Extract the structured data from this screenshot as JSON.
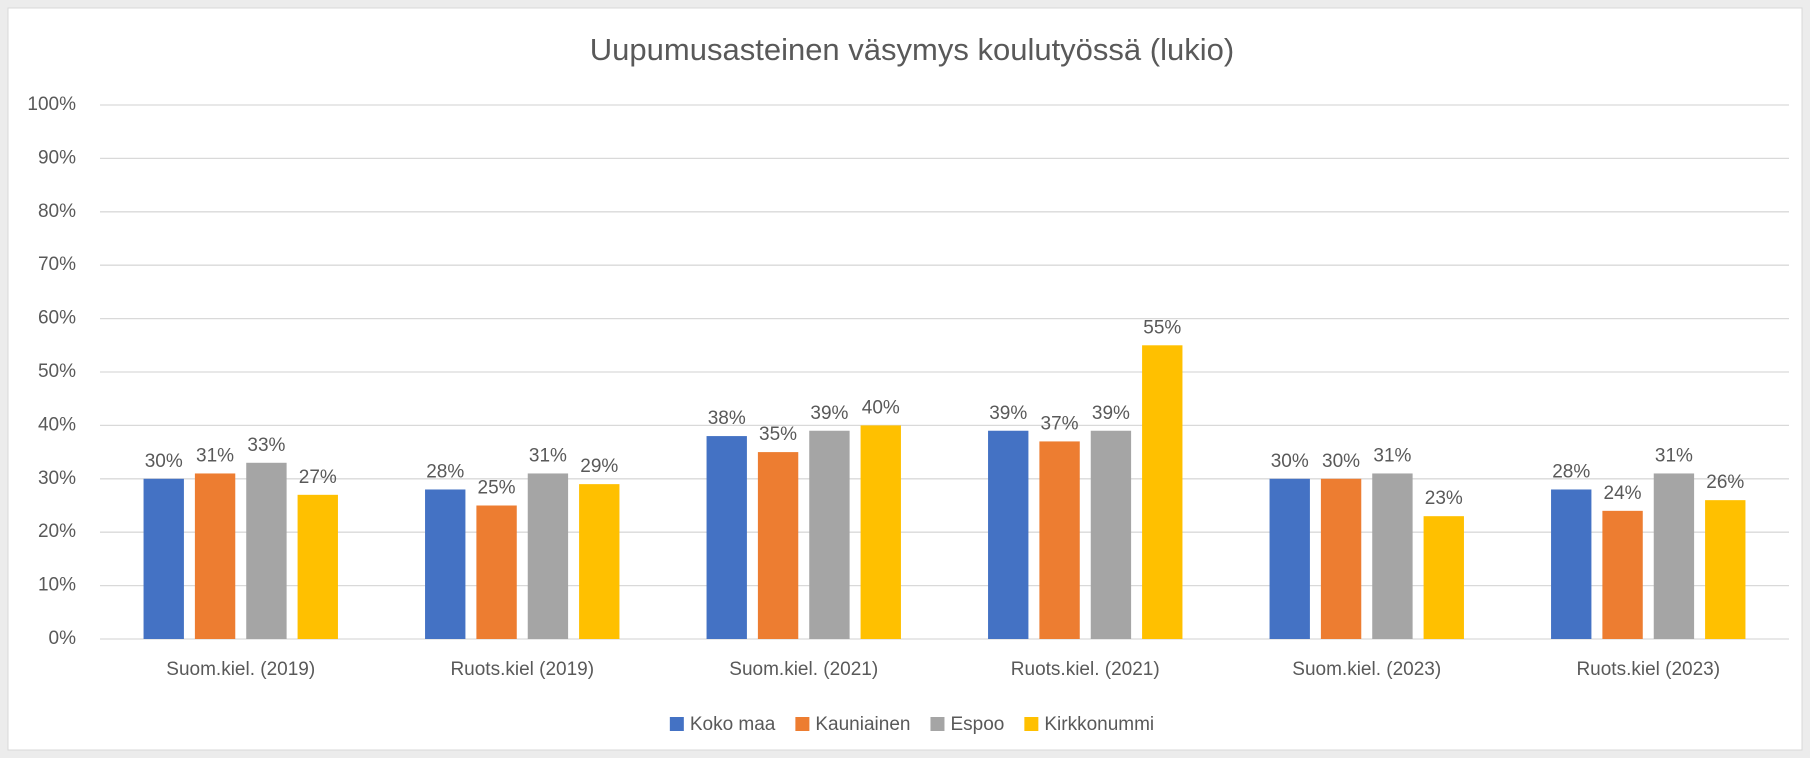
{
  "chart_data": {
    "type": "bar",
    "title": "Uupumusasteinen väsymys koulutyössä (lukio)",
    "categories": [
      "Suom.kiel. (2019)",
      "Ruots.kiel (2019)",
      "Suom.kiel. (2021)",
      "Ruots.kiel. (2021)",
      "Suom.kiel. (2023)",
      "Ruots.kiel (2023)"
    ],
    "series": [
      {
        "name": "Koko maa",
        "color": "#4472c4",
        "values": [
          30,
          28,
          38,
          39,
          30,
          28
        ],
        "value_labels": [
          "30%",
          "28%",
          "38%",
          "39%",
          "30%",
          "28%"
        ]
      },
      {
        "name": "Kauniainen",
        "color": "#ed7d31",
        "values": [
          31,
          25,
          35,
          37,
          30,
          24
        ],
        "value_labels": [
          "31%",
          "25%",
          "35%",
          "37%",
          "30%",
          "24%"
        ]
      },
      {
        "name": "Espoo",
        "color": "#a5a5a5",
        "values": [
          33,
          31,
          39,
          39,
          31,
          31
        ],
        "value_labels": [
          "33%",
          "31%",
          "39%",
          "39%",
          "31%",
          "31%"
        ]
      },
      {
        "name": "Kirkkonummi",
        "color": "#ffc000",
        "values": [
          27,
          29,
          40,
          55,
          23,
          26
        ],
        "value_labels": [
          "27%",
          "29%",
          "40%",
          "55%",
          "23%",
          "26%"
        ]
      }
    ],
    "ylim": [
      0,
      100
    ],
    "yticks": [
      {
        "value": 0,
        "label": "0%"
      },
      {
        "value": 10,
        "label": "10%"
      },
      {
        "value": 20,
        "label": "20%"
      },
      {
        "value": 30,
        "label": "30%"
      },
      {
        "value": 40,
        "label": "40%"
      },
      {
        "value": 50,
        "label": "50%"
      },
      {
        "value": 60,
        "label": "60%"
      },
      {
        "value": 70,
        "label": "70%"
      },
      {
        "value": 80,
        "label": "80%"
      },
      {
        "value": 90,
        "label": "90%"
      },
      {
        "value": 100,
        "label": "100%"
      }
    ],
    "grid": true,
    "legend": "bottom"
  }
}
